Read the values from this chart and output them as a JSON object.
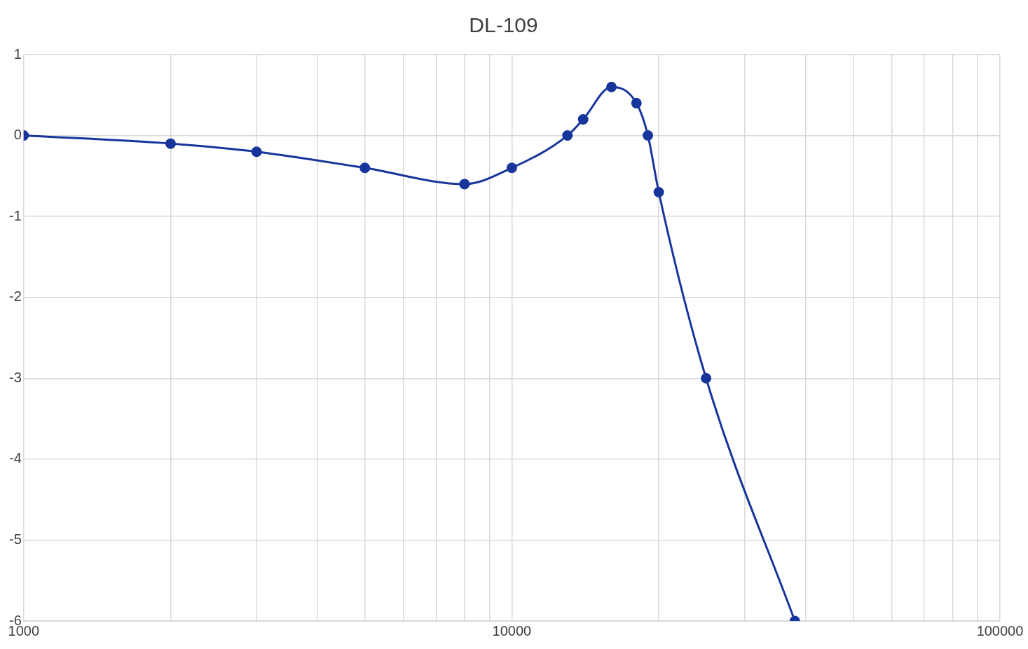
{
  "chart_data": {
    "type": "line",
    "title": "DL-109",
    "x": [
      1000,
      2000,
      3000,
      5000,
      8000,
      10000,
      13000,
      14000,
      16000,
      18000,
      19000,
      20000,
      25000,
      38000
    ],
    "series": [
      {
        "color": "#17359b",
        "values": [
          0,
          -0.1,
          -0.2,
          -0.4,
          -0.6,
          -0.4,
          0,
          0.2,
          0.6,
          0.4,
          0,
          -0.7,
          -3,
          -6
        ]
      }
    ],
    "log": "x",
    "xlim": [
      1000,
      100000
    ],
    "xticks": [
      1000,
      {
        "value": 2000,
        "label": null
      },
      {
        "value": 3000,
        "label": null
      },
      {
        "value": 4000,
        "label": null
      },
      {
        "value": 5000,
        "label": null
      },
      {
        "value": 6000,
        "label": null
      },
      {
        "value": 7000,
        "label": null
      },
      {
        "value": 8000,
        "label": null
      },
      {
        "value": 9000,
        "label": null
      },
      10000,
      {
        "value": 20000,
        "label": null
      },
      {
        "value": 30000,
        "label": null
      },
      {
        "value": 40000,
        "label": null
      },
      {
        "value": 50000,
        "label": null
      },
      {
        "value": 60000,
        "label": null
      },
      {
        "value": 70000,
        "label": null
      },
      {
        "value": 80000,
        "label": null
      },
      {
        "value": 90000,
        "label": null
      },
      100000
    ],
    "ylim": [
      -6,
      1
    ],
    "yticks": [
      -6,
      -5,
      -4,
      -3,
      -2,
      -1,
      0,
      1
    ],
    "grid": true,
    "legend": false,
    "marker": "circle",
    "line_style": "solid"
  }
}
